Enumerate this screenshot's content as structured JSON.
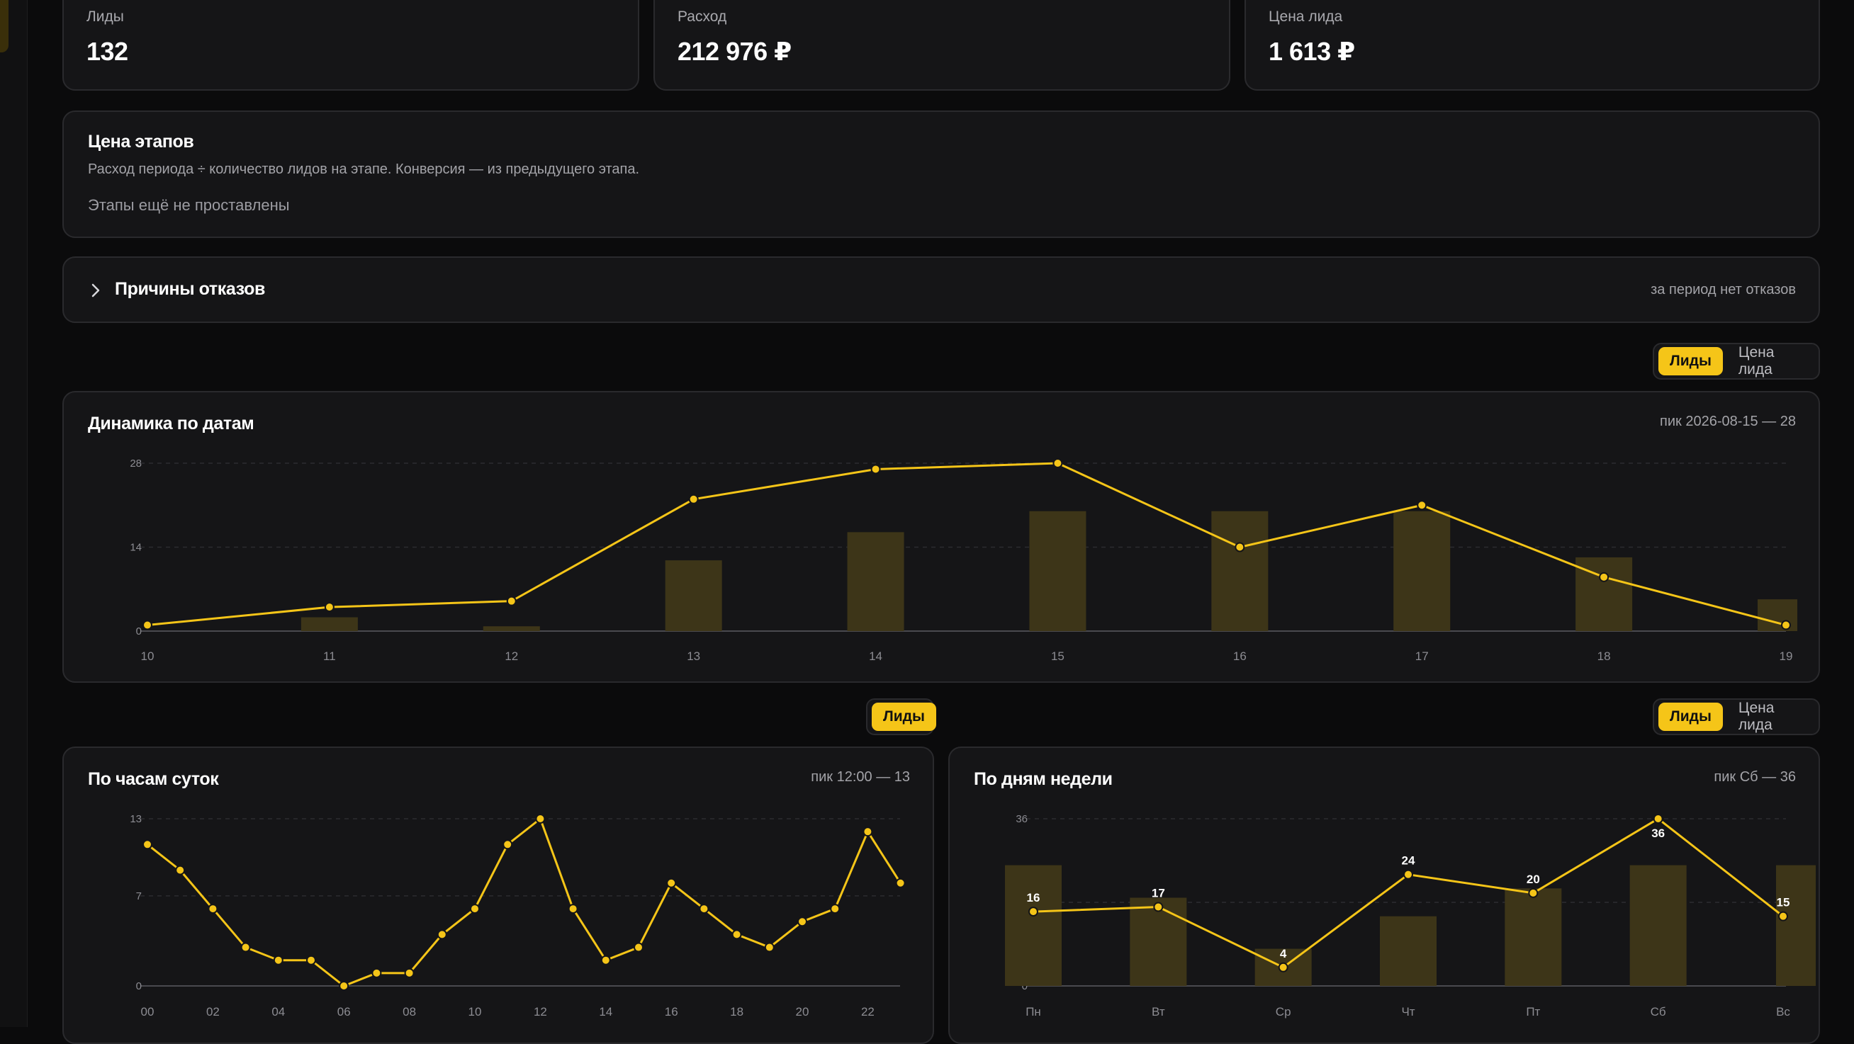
{
  "kpis": [
    {
      "label": "Лиды",
      "value": "132"
    },
    {
      "label": "Расход",
      "value": "212 976 ₽"
    },
    {
      "label": "Цена лида",
      "value": "1 613 ₽"
    }
  ],
  "stages": {
    "title": "Цена этапов",
    "description": "Расход периода ÷ количество лидов на этапе. Конверсия — из предыдущего этапа.",
    "empty": "Этапы ещё не проставлены"
  },
  "rejections": {
    "title": "Причины отказов",
    "note": "за период нет отказов"
  },
  "toggle_dates": {
    "options": [
      "Лиды",
      "Цена лида"
    ],
    "active": "Лиды"
  },
  "toggle_hours": {
    "options": [
      "Лиды"
    ],
    "active": "Лиды"
  },
  "toggle_week": {
    "options": [
      "Лиды",
      "Цена лида"
    ],
    "active": "Лиды"
  },
  "colors": {
    "accent": "#f5c518",
    "bar": "#3d3518",
    "card": "#151517",
    "border": "#2a2a2d"
  },
  "chart_data": [
    {
      "type": "line",
      "title": "Динамика по датам",
      "peak_note": "пик 2026-08-15 — 28",
      "categories": [
        "10",
        "11",
        "12",
        "13",
        "14",
        "15",
        "16",
        "17",
        "18",
        "19"
      ],
      "y_ticks": [
        "0",
        "14",
        "28"
      ],
      "ylim": [
        0,
        28
      ],
      "series": [
        {
          "values": [
            1,
            4,
            5,
            22,
            27,
            28,
            14,
            21,
            9,
            1
          ]
        },
        {
          "values": [
            0,
            2.3,
            0.8,
            11.8,
            16.5,
            20,
            20,
            20,
            12.3,
            5.3
          ]
        }
      ],
      "grid": true
    },
    {
      "type": "line",
      "title": "По часам суток",
      "peak_note": "пик 12:00 — 13",
      "x_tick_labels": [
        "00",
        "02",
        "04",
        "06",
        "08",
        "10",
        "12",
        "14",
        "16",
        "18",
        "20",
        "22"
      ],
      "y_ticks": [
        "0",
        "7",
        "13"
      ],
      "ylim": [
        0,
        13
      ],
      "values": [
        11,
        9,
        6,
        3,
        2,
        2,
        0,
        1,
        1,
        4,
        6,
        11,
        13,
        6,
        2,
        3,
        8,
        6,
        4,
        3,
        5,
        6,
        12,
        8
      ],
      "grid": true
    },
    {
      "type": "line",
      "title": "По дням недели",
      "peak_note": "пик Сб — 36",
      "categories": [
        "Пн",
        "Вт",
        "Ср",
        "Чт",
        "Пт",
        "Сб",
        "Вс"
      ],
      "y_ticks": [
        "0",
        "18",
        "36"
      ],
      "ylim": [
        0,
        36
      ],
      "series": [
        {
          "values": [
            16,
            17,
            4,
            24,
            20,
            36,
            15
          ]
        },
        {
          "values": [
            26,
            19,
            8,
            15,
            21,
            26,
            26
          ]
        }
      ],
      "grid": true
    }
  ]
}
